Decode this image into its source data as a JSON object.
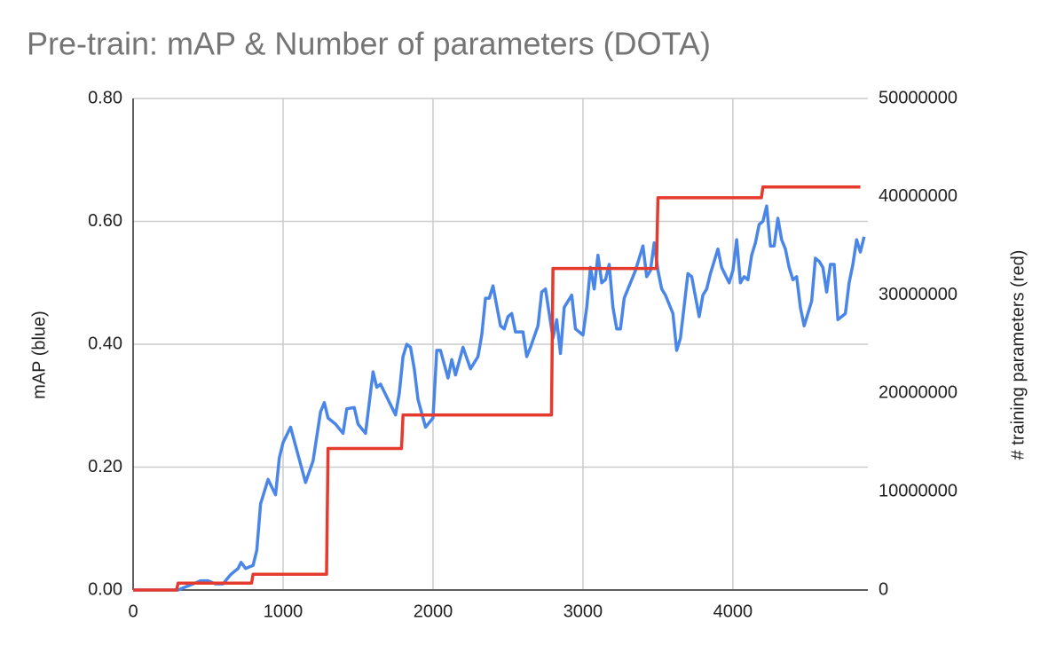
{
  "chart_data": {
    "type": "line",
    "title": "Pre-train: mAP & Number of parameters (DOTA)",
    "ylabel": "mAP (blue)",
    "y2label": "# training parameters (red)",
    "xlim": [
      0,
      4900
    ],
    "xticks": [
      0,
      1000,
      2000,
      3000,
      4000
    ],
    "ylim": [
      0,
      0.8
    ],
    "yticks": [
      {
        "value": 0,
        "label": "0.00"
      },
      {
        "value": 0.2,
        "label": "0.20"
      },
      {
        "value": 0.4,
        "label": "0.40"
      },
      {
        "value": 0.6,
        "label": "0.60"
      },
      {
        "value": 0.8,
        "label": "0.80"
      }
    ],
    "y2lim": [
      0,
      50000000
    ],
    "y2ticks": [
      0,
      10000000,
      20000000,
      30000000,
      40000000,
      50000000
    ],
    "grid": true,
    "series": [
      {
        "color": "#4a86e8",
        "x": [
          0,
          50,
          100,
          150,
          200,
          250,
          300,
          350,
          400,
          450,
          500,
          550,
          600,
          650,
          700,
          720,
          750,
          800,
          825,
          850,
          900,
          950,
          975,
          1000,
          1050,
          1100,
          1150,
          1200,
          1250,
          1275,
          1300,
          1350,
          1400,
          1425,
          1475,
          1500,
          1550,
          1600,
          1625,
          1650,
          1700,
          1750,
          1775,
          1800,
          1825,
          1850,
          1875,
          1900,
          1950,
          2000,
          2025,
          2050,
          2100,
          2125,
          2150,
          2200,
          2250,
          2300,
          2325,
          2350,
          2375,
          2400,
          2450,
          2475,
          2500,
          2525,
          2550,
          2600,
          2625,
          2650,
          2700,
          2725,
          2750,
          2800,
          2825,
          2850,
          2875,
          2925,
          2950,
          3000,
          3025,
          3050,
          3075,
          3100,
          3125,
          3150,
          3175,
          3200,
          3225,
          3250,
          3275,
          3300,
          3350,
          3400,
          3425,
          3450,
          3475,
          3500,
          3525,
          3550,
          3600,
          3625,
          3650,
          3700,
          3725,
          3775,
          3800,
          3825,
          3850,
          3900,
          3925,
          3975,
          4000,
          4025,
          4050,
          4075,
          4100,
          4125,
          4150,
          4175,
          4200,
          4225,
          4250,
          4275,
          4300,
          4325,
          4350,
          4375,
          4400,
          4425,
          4450,
          4475,
          4500,
          4525,
          4550,
          4575,
          4600,
          4625,
          4650,
          4675,
          4700,
          4725,
          4750,
          4775,
          4800,
          4825,
          4850,
          4875
        ],
        "values": [
          0,
          0,
          0,
          0,
          0,
          0,
          0,
          0.005,
          0.01,
          0.015,
          0.015,
          0.01,
          0.01,
          0.025,
          0.035,
          0.045,
          0.035,
          0.04,
          0.065,
          0.14,
          0.18,
          0.155,
          0.215,
          0.24,
          0.265,
          0.22,
          0.175,
          0.21,
          0.29,
          0.305,
          0.28,
          0.27,
          0.255,
          0.295,
          0.297,
          0.27,
          0.255,
          0.355,
          0.33,
          0.335,
          0.31,
          0.285,
          0.32,
          0.38,
          0.4,
          0.395,
          0.36,
          0.31,
          0.265,
          0.28,
          0.39,
          0.39,
          0.345,
          0.375,
          0.35,
          0.395,
          0.36,
          0.38,
          0.415,
          0.475,
          0.475,
          0.495,
          0.43,
          0.425,
          0.445,
          0.45,
          0.42,
          0.42,
          0.38,
          0.395,
          0.43,
          0.485,
          0.49,
          0.41,
          0.44,
          0.385,
          0.46,
          0.48,
          0.425,
          0.415,
          0.46,
          0.525,
          0.49,
          0.545,
          0.5,
          0.505,
          0.53,
          0.46,
          0.425,
          0.425,
          0.475,
          0.49,
          0.52,
          0.56,
          0.51,
          0.52,
          0.565,
          0.52,
          0.49,
          0.48,
          0.45,
          0.39,
          0.41,
          0.515,
          0.51,
          0.445,
          0.48,
          0.49,
          0.515,
          0.555,
          0.525,
          0.5,
          0.52,
          0.57,
          0.5,
          0.51,
          0.505,
          0.545,
          0.565,
          0.595,
          0.6,
          0.625,
          0.56,
          0.56,
          0.605,
          0.57,
          0.555,
          0.525,
          0.505,
          0.51,
          0.46,
          0.43,
          0.45,
          0.47,
          0.54,
          0.535,
          0.525,
          0.485,
          0.53,
          0.53,
          0.44,
          0.445,
          0.45,
          0.5,
          0.53,
          0.57,
          0.55,
          0.575
        ]
      },
      {
        "color": "#e53a2e",
        "axis": "y2",
        "x": [
          0,
          290,
          300,
          790,
          800,
          1290,
          1300,
          1790,
          1800,
          2790,
          2800,
          3490,
          3500,
          4190,
          4200,
          4850
        ],
        "values": [
          0,
          0,
          700000,
          700000,
          1600000,
          1600000,
          14400000,
          14400000,
          17800000,
          17800000,
          32700000,
          32700000,
          39900000,
          39900000,
          41000000,
          41000000
        ]
      }
    ]
  }
}
